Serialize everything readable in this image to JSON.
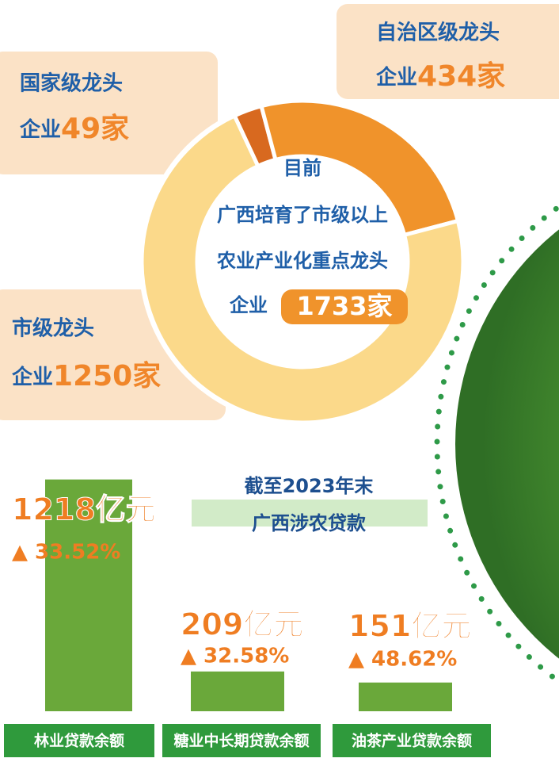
{
  "chart_data": [
    {
      "type": "donut",
      "categories": [
        "国家级龙头",
        "自治区级龙头",
        "市级龙头"
      ],
      "unit_prefix": "企业",
      "values": [
        49,
        434,
        1250
      ],
      "value_labels": [
        "49家",
        "434家",
        "1250家"
      ],
      "colors": [
        "#d8691f",
        "#f0932b",
        "#fbd98a"
      ],
      "center_text": [
        "目前",
        "广西培育了市级以上",
        "农业产业化重点龙头"
      ],
      "total": 1733,
      "total_label": "1733家"
    },
    {
      "type": "bar",
      "title": "截至2023年末",
      "subtitle": "广西涉农贷款",
      "categories": [
        "林业贷款余额",
        "糖业中长期贷款余额",
        "油茶产业贷款余额"
      ],
      "values": [
        1218,
        209,
        151
      ],
      "value_labels": [
        "1218亿元",
        "209亿元",
        "151亿元"
      ],
      "growth": [
        33.52,
        32.58,
        48.62
      ],
      "growth_labels": [
        "▲ 33.52%",
        "▲ 32.58%",
        "▲ 48.62%"
      ],
      "color": "#6aa83a",
      "ylim": [
        0,
        1250
      ]
    }
  ]
}
